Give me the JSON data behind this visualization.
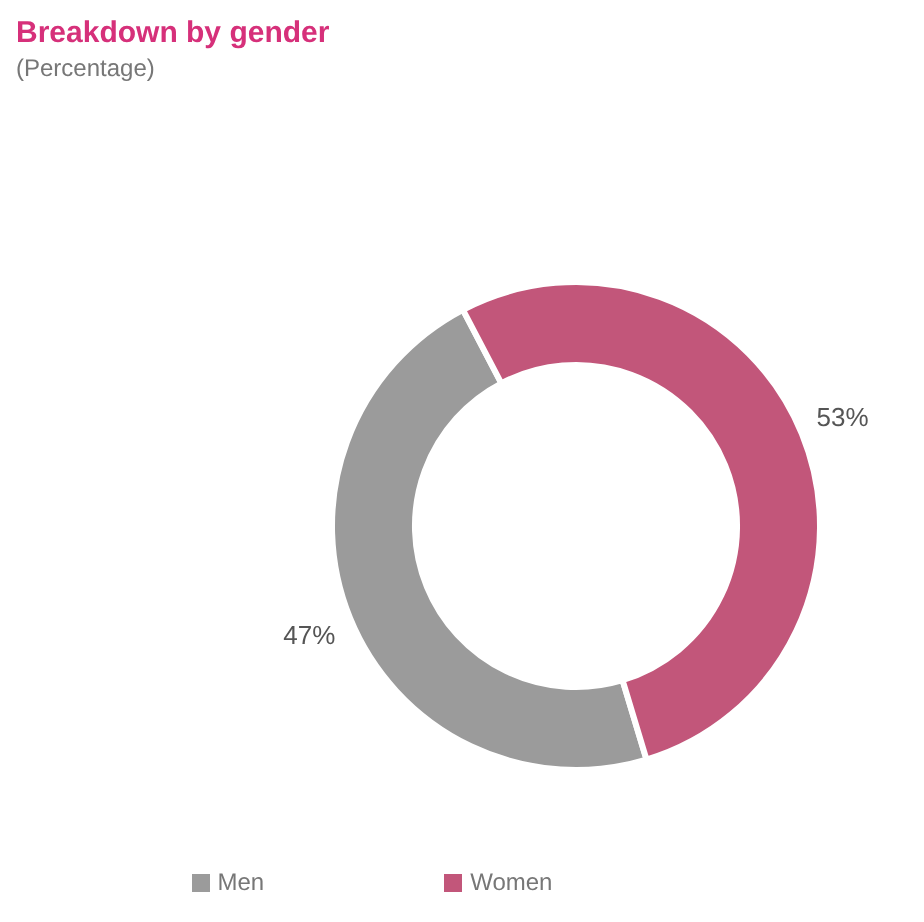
{
  "chart_data": {
    "type": "donut",
    "title": "Breakdown by gender",
    "subtitle": "(Percentage)",
    "categories": [
      "Men",
      "Women"
    ],
    "values": [
      47,
      53
    ],
    "colors": [
      "#9b9b9b",
      "#c2567a"
    ],
    "value_labels": [
      "47%",
      "53%"
    ],
    "legend": "bottom"
  }
}
